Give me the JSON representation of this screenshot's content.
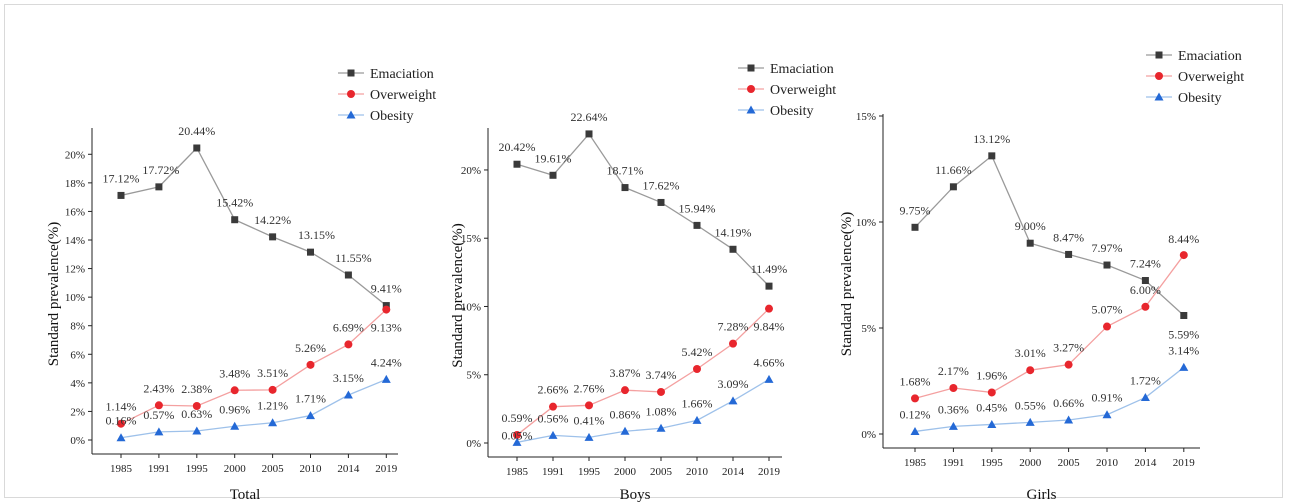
{
  "colors": {
    "Emaciation": "#9a9a9a",
    "Overweight": "#f4a0a0",
    "Obesity": "#9ec1ea",
    "Emaciation_marker": "#3a3a3a",
    "Overweight_marker": "#e8262d",
    "Obesity_marker": "#2469d6"
  },
  "chart_data": [
    {
      "type": "line",
      "xlabel": "Total",
      "ylabel": "Standard prevalence(%)",
      "x": [
        "1985",
        "1991",
        "1995",
        "2000",
        "2005",
        "2010",
        "2014",
        "2019"
      ],
      "ylim": [
        0,
        21
      ],
      "yticks": [
        0,
        2,
        4,
        6,
        8,
        10,
        12,
        14,
        16,
        18,
        20
      ],
      "ytick_labels": [
        "0%",
        "2%",
        "4%",
        "6%",
        "8%",
        "10%",
        "12%",
        "14%",
        "16%",
        "18%",
        "20%"
      ],
      "legend_position": "top-right",
      "series": [
        {
          "name": "Emaciation",
          "values": [
            17.12,
            17.72,
            20.44,
            15.42,
            14.22,
            13.15,
            11.55,
            9.41
          ],
          "labels": [
            "17.12%",
            "17.72%",
            "20.44%",
            "15.42%",
            "14.22%",
            "13.15%",
            "11.55%",
            "9.41%"
          ]
        },
        {
          "name": "Overweight",
          "values": [
            1.14,
            2.43,
            2.38,
            3.48,
            3.51,
            5.26,
            6.69,
            9.13
          ],
          "labels": [
            "1.14%",
            "2.43%",
            "2.38%",
            "3.48%",
            "3.51%",
            "5.26%",
            "6.69%",
            "9.13%"
          ]
        },
        {
          "name": "Obesity",
          "values": [
            0.16,
            0.57,
            0.63,
            0.96,
            1.21,
            1.71,
            3.15,
            4.24
          ],
          "labels": [
            "0.16%",
            "0.57%",
            "0.63%",
            "0.96%",
            "1.21%",
            "1.71%",
            "3.15%",
            "4.24%"
          ]
        }
      ]
    },
    {
      "type": "line",
      "xlabel": "Boys",
      "ylabel": "Standard prevalence(%)",
      "x": [
        "1985",
        "1991",
        "1995",
        "2000",
        "2005",
        "2010",
        "2014",
        "2019"
      ],
      "ylim": [
        0,
        23
      ],
      "yticks": [
        0,
        5,
        10,
        15,
        20
      ],
      "ytick_labels": [
        "0%",
        "5%",
        "10%",
        "15%",
        "20%"
      ],
      "legend_position": "top-right",
      "series": [
        {
          "name": "Emaciation",
          "values": [
            20.42,
            19.61,
            22.64,
            18.71,
            17.62,
            15.94,
            14.19,
            11.49
          ],
          "labels": [
            "20.42%",
            "19.61%",
            "22.64%",
            "18.71%",
            "17.62%",
            "15.94%",
            "14.19%",
            "11.49%"
          ]
        },
        {
          "name": "Overweight",
          "values": [
            0.59,
            2.66,
            2.76,
            3.87,
            3.74,
            5.42,
            7.28,
            9.84
          ],
          "labels": [
            "0.59%",
            "2.66%",
            "2.76%",
            "3.87%",
            "3.74%",
            "5.42%",
            "7.28%",
            "9.84%"
          ]
        },
        {
          "name": "Obesity",
          "values": [
            0.05,
            0.56,
            0.41,
            0.86,
            1.08,
            1.66,
            3.09,
            4.66
          ],
          "labels": [
            "0.05%",
            "0.56%",
            "0.41%",
            "0.86%",
            "1.08%",
            "1.66%",
            "3.09%",
            "4.66%"
          ]
        }
      ]
    },
    {
      "type": "line",
      "xlabel": "Girls",
      "ylabel": "Standard prevalence(%)",
      "x": [
        "1985",
        "1991",
        "1995",
        "2000",
        "2005",
        "2010",
        "2014",
        "2019"
      ],
      "ylim": [
        0,
        15
      ],
      "yticks": [
        0,
        5,
        10,
        15
      ],
      "ytick_labels": [
        "0%",
        "5%",
        "10%",
        "15%"
      ],
      "legend_position": "top-right",
      "series": [
        {
          "name": "Emaciation",
          "values": [
            9.75,
            11.66,
            13.12,
            9.0,
            8.47,
            7.97,
            7.24,
            5.59
          ],
          "labels": [
            "9.75%",
            "11.66%",
            "13.12%",
            "9.00%",
            "8.47%",
            "7.97%",
            "7.24%",
            "5.59%"
          ]
        },
        {
          "name": "Overweight",
          "values": [
            1.68,
            2.17,
            1.96,
            3.01,
            3.27,
            5.07,
            6.0,
            8.44
          ],
          "labels": [
            "1.68%",
            "2.17%",
            "1.96%",
            "3.01%",
            "3.27%",
            "5.07%",
            "6.00%",
            "8.44%"
          ]
        },
        {
          "name": "Obesity",
          "values": [
            0.12,
            0.36,
            0.45,
            0.55,
            0.66,
            0.91,
            1.72,
            3.14
          ],
          "labels": [
            "0.12%",
            "0.36%",
            "0.45%",
            "0.55%",
            "0.66%",
            "0.91%",
            "1.72%",
            "3.14%"
          ]
        }
      ]
    }
  ]
}
